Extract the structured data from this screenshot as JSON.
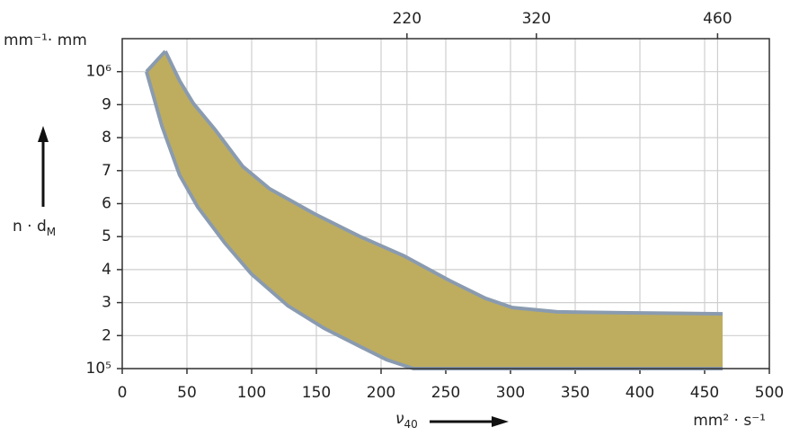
{
  "chart_data": {
    "type": "band",
    "y_unit": "mm⁻¹· mm",
    "x_unit": "mm² · s⁻¹",
    "y_label": {
      "main": "n · d",
      "sub": "M"
    },
    "x_label": {
      "main": "ν",
      "sub": "40"
    },
    "fill": "#bead5f",
    "series": [
      {
        "color": "#8a9bb0",
        "x": [
          33.3,
          44.4,
          54.9,
          72.2,
          93.1,
          113.9,
          148.6,
          183.3,
          218,
          252.8,
          280.6,
          301.4,
          336,
          391.7,
          463.9
        ],
        "values": [
          1062000,
          972000,
          904000,
          822000,
          713000,
          645000,
          569000,
          501000,
          441000,
          367000,
          313000,
          285000,
          272000,
          269000,
          266000
        ]
      },
      {
        "color": "#8a9bb0",
        "x": [
          18.75,
          30.6,
          44.4,
          58.3,
          79.2,
          100,
          127.8,
          155.6,
          183.3,
          204.2,
          225,
          463.9
        ],
        "values": [
          1000000,
          836000,
          686000,
          590000,
          481000,
          386000,
          291000,
          223000,
          168000,
          127000,
          100000,
          100000
        ]
      }
    ],
    "xlim": [
      0,
      500
    ],
    "ylim": [
      100000,
      1100000
    ],
    "xticks": [
      0,
      50,
      100,
      150,
      200,
      250,
      300,
      350,
      400,
      450,
      500
    ],
    "top_xticks": [
      220,
      320,
      460
    ],
    "yticks": [
      {
        "value": 100000,
        "label": "10⁵"
      },
      {
        "value": 200000,
        "label": "2"
      },
      {
        "value": 300000,
        "label": "3"
      },
      {
        "value": 400000,
        "label": "4"
      },
      {
        "value": 500000,
        "label": "5"
      },
      {
        "value": 600000,
        "label": "6"
      },
      {
        "value": 700000,
        "label": "7"
      },
      {
        "value": 800000,
        "label": "8"
      },
      {
        "value": 900000,
        "label": "9"
      },
      {
        "value": 1000000,
        "label": "10⁶"
      }
    ],
    "grid": true
  }
}
